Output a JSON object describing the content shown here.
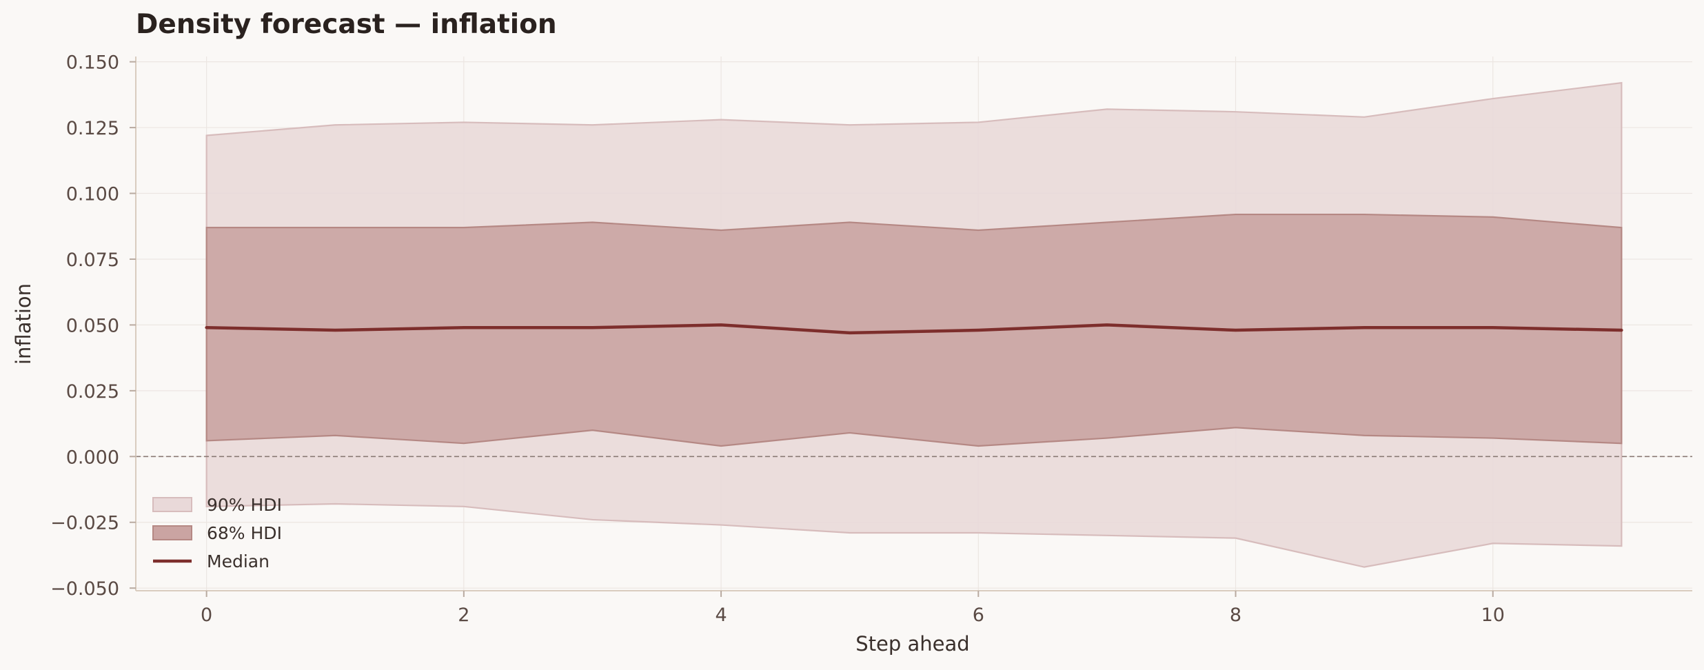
{
  "chart_data": {
    "type": "area",
    "title": "Density forecast — inflation",
    "xlabel": "Step ahead",
    "ylabel": "inflation",
    "xlim": [
      -0.55,
      11.55
    ],
    "ylim": [
      -0.051,
      0.152
    ],
    "x_ticks": [
      0,
      2,
      4,
      6,
      8,
      10
    ],
    "x_tick_labels": [
      "0",
      "2",
      "4",
      "6",
      "8",
      "10"
    ],
    "y_ticks": [
      -0.05,
      -0.025,
      0.0,
      0.025,
      0.05,
      0.075,
      0.1,
      0.125,
      0.15
    ],
    "y_tick_labels": [
      "−0.050",
      "−0.025",
      "0.000",
      "0.025",
      "0.050",
      "0.075",
      "0.100",
      "0.125",
      "0.150"
    ],
    "grid": true,
    "reference_line": {
      "y": 0.0,
      "style": "dashed"
    },
    "legend": {
      "position": "lower-left"
    },
    "x": [
      0,
      1,
      2,
      3,
      4,
      5,
      6,
      7,
      8,
      9,
      10,
      11
    ],
    "series": [
      {
        "name": "90% HDI",
        "kind": "band",
        "color": "#e9d9d9",
        "edge": "#d7bcbc",
        "lower": [
          -0.019,
          -0.018,
          -0.019,
          -0.024,
          -0.026,
          -0.029,
          -0.029,
          -0.03,
          -0.031,
          -0.042,
          -0.033,
          -0.034
        ],
        "upper": [
          0.122,
          0.126,
          0.127,
          0.126,
          0.128,
          0.126,
          0.127,
          0.132,
          0.131,
          0.129,
          0.136,
          0.142
        ]
      },
      {
        "name": "68% HDI",
        "kind": "band",
        "color": "#caa4a2",
        "edge": "#b58884",
        "lower": [
          0.006,
          0.008,
          0.005,
          0.01,
          0.004,
          0.009,
          0.004,
          0.007,
          0.011,
          0.008,
          0.007,
          0.005
        ],
        "upper": [
          0.087,
          0.087,
          0.087,
          0.089,
          0.086,
          0.089,
          0.086,
          0.089,
          0.092,
          0.092,
          0.091,
          0.087
        ]
      },
      {
        "name": "Median",
        "kind": "line",
        "color": "#7d2e2c",
        "values": [
          0.049,
          0.048,
          0.049,
          0.049,
          0.05,
          0.047,
          0.048,
          0.05,
          0.048,
          0.049,
          0.049,
          0.048
        ]
      }
    ]
  }
}
